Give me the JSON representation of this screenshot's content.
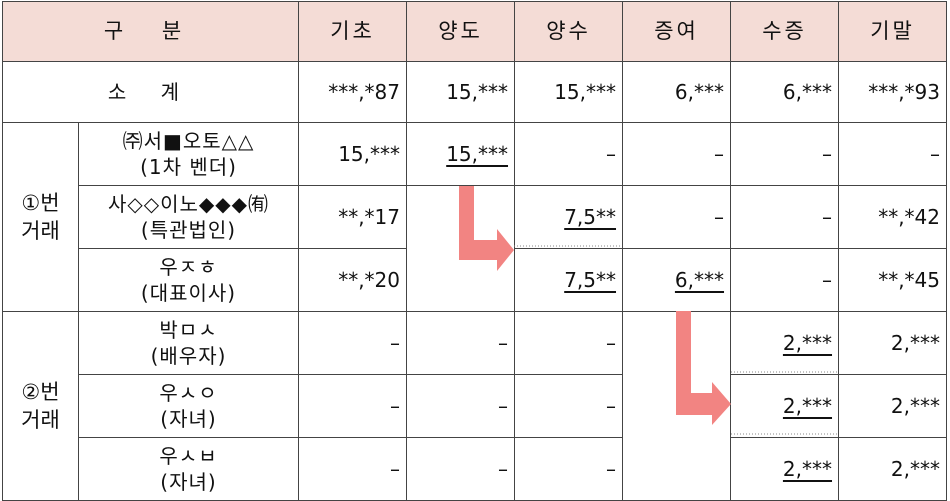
{
  "header": {
    "gubun": "구 분",
    "gicho": "기초",
    "yangdo": "양도",
    "yangsu": "양수",
    "jeungyeo": "증여",
    "sujeung": "수증",
    "gimal": "기말"
  },
  "subtotal": {
    "label": "소 계",
    "gicho": "***,*87",
    "yangdo": "15,***",
    "yangsu": "15,***",
    "jeungyeo": "6,***",
    "sujeung": "6,***",
    "gimal": "***,*93"
  },
  "group1": {
    "label_line1": "①번",
    "label_line2": "거래",
    "rows": [
      {
        "name_line1": "㈜서■오토△△",
        "name_line2": "(1차 벤더)",
        "gicho": "15,***",
        "yangdo": "15,***",
        "yangsu": "–",
        "jeungyeo": "–",
        "sujeung": "–",
        "gimal": "–"
      },
      {
        "name_line1": "사◇◇이노◆◆◆㈲",
        "name_line2": "(특관법인)",
        "gicho": "**,*17",
        "yangdo": "",
        "yangsu": "7,5**",
        "jeungyeo": "–",
        "sujeung": "–",
        "gimal": "**,*42"
      },
      {
        "name_line1": "우ㅈㅎ",
        "name_line2": "(대표이사)",
        "gicho": "**,*20",
        "yangdo": "",
        "yangsu": "7,5**",
        "jeungyeo": "6,***",
        "sujeung": "–",
        "gimal": "**,*45"
      }
    ]
  },
  "group2": {
    "label_line1": "②번",
    "label_line2": "거래",
    "rows": [
      {
        "name_line1": "박ㅁㅅ",
        "name_line2": "(배우자)",
        "gicho": "–",
        "yangdo": "–",
        "yangsu": "–",
        "jeungyeo": "",
        "sujeung": "2,***",
        "gimal": "2,***"
      },
      {
        "name_line1": "우ㅅㅇ",
        "name_line2": "(자녀)",
        "gicho": "–",
        "yangdo": "–",
        "yangsu": "–",
        "jeungyeo": "",
        "sujeung": "2,***",
        "gimal": "2,***"
      },
      {
        "name_line1": "우ㅅㅂ",
        "name_line2": "(자녀)",
        "gicho": "–",
        "yangdo": "–",
        "yangsu": "–",
        "jeungyeo": "",
        "sujeung": "2,***",
        "gimal": "2,***"
      }
    ]
  },
  "colors": {
    "header_bg": "#f4dcd6",
    "arrow": "#f08080",
    "border": "#444444"
  },
  "icons": [
    "transfer-arrow-icon",
    "gift-arrow-icon"
  ]
}
